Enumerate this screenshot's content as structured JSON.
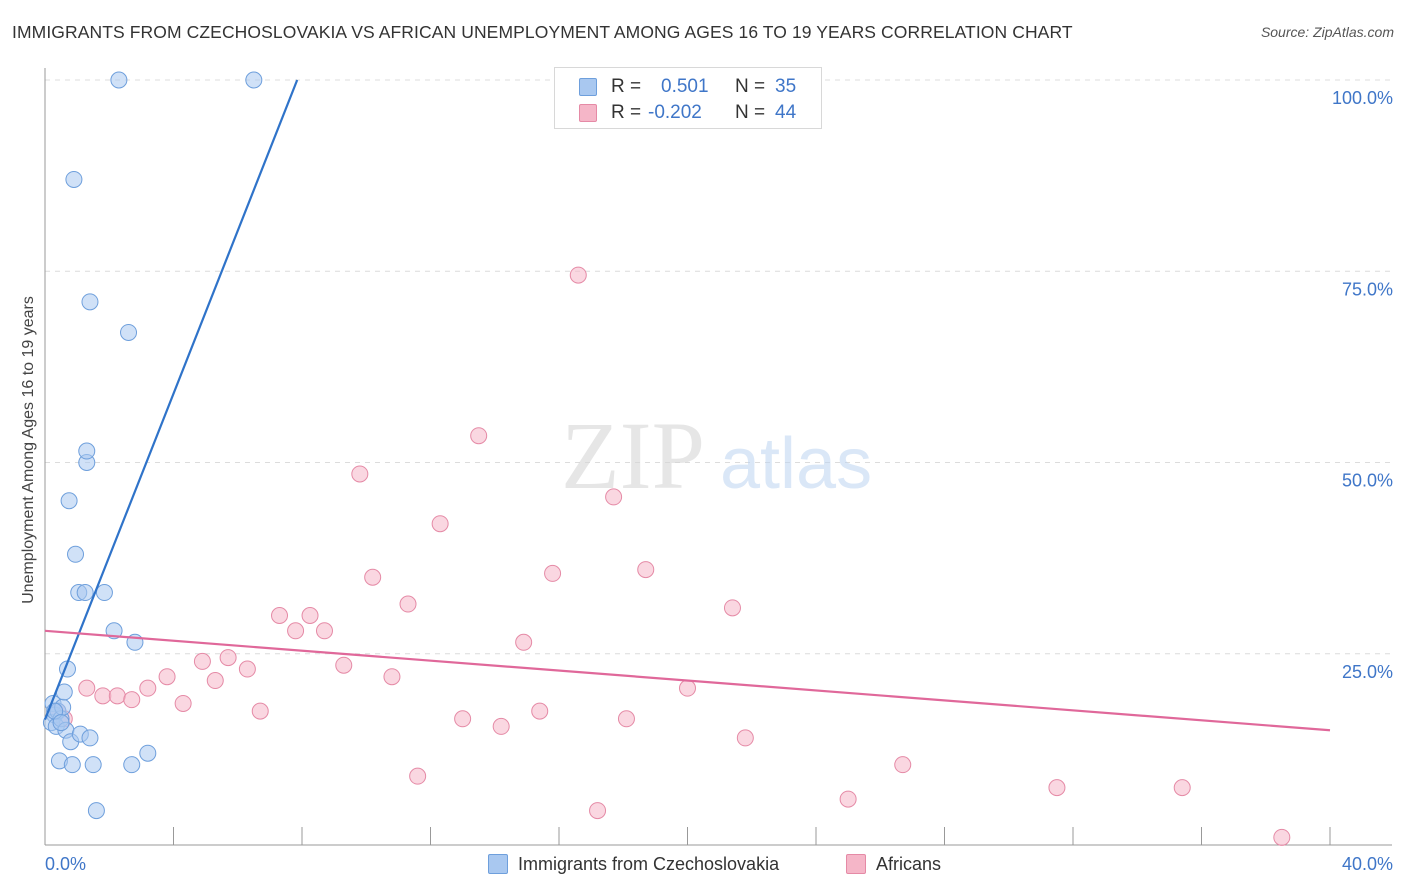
{
  "title": "IMMIGRANTS FROM CZECHOSLOVAKIA VS AFRICAN UNEMPLOYMENT AMONG AGES 16 TO 19 YEARS CORRELATION CHART",
  "source": "Source: ZipAtlas.com",
  "watermark": {
    "zip": "ZIP",
    "atlas": "atlas"
  },
  "stats": [
    {
      "r_label": "R =",
      "r_value": "0.501",
      "n_label": "N =",
      "n_value": "35",
      "color": "#a9c8f0"
    },
    {
      "r_label": "R =",
      "r_value": "-0.202",
      "n_label": "N =",
      "n_value": "44",
      "color": "#f5b6c8"
    }
  ],
  "legend": [
    {
      "label": "Immigrants from Czechoslovakia",
      "color": "#a9c8f0"
    },
    {
      "label": "Africans",
      "color": "#f5b6c8"
    }
  ],
  "colors": {
    "blue_fill": "#a9c8f0",
    "blue_stroke": "#6e9fdc",
    "blue_line": "#2f73c9",
    "pink_fill": "#f5b6c8",
    "pink_stroke": "#e58aa6",
    "pink_line": "#e0689a",
    "tick_text": "#3f76c8"
  },
  "chart_data": {
    "type": "scatter",
    "title": "IMMIGRANTS FROM CZECHOSLOVAKIA VS AFRICAN UNEMPLOYMENT AMONG AGES 16 TO 19 YEARS CORRELATION CHART",
    "xlabel": "",
    "ylabel": "Unemployment Among Ages 16 to 19 years",
    "xlim": [
      0,
      40
    ],
    "ylim": [
      0,
      100
    ],
    "x_tick_labels": [
      "0.0%",
      "40.0%"
    ],
    "y_ticks": [
      25,
      50,
      75,
      100
    ],
    "y_tick_labels": [
      "25.0%",
      "50.0%",
      "75.0%",
      "100.0%"
    ],
    "grid": true,
    "legend_position": "bottom-center",
    "series": [
      {
        "name": "Immigrants from Czechoslovakia",
        "r": 0.501,
        "n": 35,
        "trend": {
          "x": [
            0.0,
            7.85
          ],
          "y": [
            16.4,
            100.0
          ]
        },
        "points": [
          {
            "x": 0.25,
            "y": 18.5
          },
          {
            "x": 0.3,
            "y": 17.0
          },
          {
            "x": 0.2,
            "y": 16.0
          },
          {
            "x": 0.35,
            "y": 15.5
          },
          {
            "x": 0.4,
            "y": 17.5
          },
          {
            "x": 0.5,
            "y": 16.5
          },
          {
            "x": 0.55,
            "y": 18.0
          },
          {
            "x": 0.6,
            "y": 20.0
          },
          {
            "x": 0.65,
            "y": 15.0
          },
          {
            "x": 0.45,
            "y": 11.0
          },
          {
            "x": 0.7,
            "y": 23.0
          },
          {
            "x": 0.8,
            "y": 13.5
          },
          {
            "x": 0.85,
            "y": 10.5
          },
          {
            "x": 0.75,
            "y": 45.0
          },
          {
            "x": 0.95,
            "y": 38.0
          },
          {
            "x": 1.05,
            "y": 33.0
          },
          {
            "x": 1.25,
            "y": 33.0
          },
          {
            "x": 1.1,
            "y": 14.5
          },
          {
            "x": 1.5,
            "y": 10.5
          },
          {
            "x": 1.4,
            "y": 14.0
          },
          {
            "x": 1.3,
            "y": 50.0
          },
          {
            "x": 1.3,
            "y": 51.5
          },
          {
            "x": 0.9,
            "y": 87.0
          },
          {
            "x": 1.4,
            "y": 71.0
          },
          {
            "x": 1.6,
            "y": 4.5
          },
          {
            "x": 1.85,
            "y": 33.0
          },
          {
            "x": 2.15,
            "y": 28.0
          },
          {
            "x": 2.3,
            "y": 100.0
          },
          {
            "x": 2.6,
            "y": 67.0
          },
          {
            "x": 2.7,
            "y": 10.5
          },
          {
            "x": 2.8,
            "y": 26.5
          },
          {
            "x": 3.2,
            "y": 12.0
          },
          {
            "x": 6.5,
            "y": 100.0
          },
          {
            "x": 0.3,
            "y": 17.5
          },
          {
            "x": 0.5,
            "y": 16.0
          }
        ]
      },
      {
        "name": "Africans",
        "r": -0.202,
        "n": 44,
        "trend": {
          "x": [
            0.0,
            40.0
          ],
          "y": [
            28.0,
            15.0
          ]
        },
        "points": [
          {
            "x": 0.6,
            "y": 16.5
          },
          {
            "x": 0.4,
            "y": 17.5
          },
          {
            "x": 1.3,
            "y": 20.5
          },
          {
            "x": 1.8,
            "y": 19.5
          },
          {
            "x": 2.25,
            "y": 19.5
          },
          {
            "x": 2.7,
            "y": 19.0
          },
          {
            "x": 3.2,
            "y": 20.5
          },
          {
            "x": 3.8,
            "y": 22.0
          },
          {
            "x": 4.3,
            "y": 18.5
          },
          {
            "x": 4.9,
            "y": 24.0
          },
          {
            "x": 5.3,
            "y": 21.5
          },
          {
            "x": 5.7,
            "y": 24.5
          },
          {
            "x": 6.3,
            "y": 23.0
          },
          {
            "x": 6.7,
            "y": 17.5
          },
          {
            "x": 7.3,
            "y": 30.0
          },
          {
            "x": 7.8,
            "y": 28.0
          },
          {
            "x": 8.25,
            "y": 30.0
          },
          {
            "x": 8.7,
            "y": 28.0
          },
          {
            "x": 9.3,
            "y": 23.5
          },
          {
            "x": 9.8,
            "y": 48.5
          },
          {
            "x": 10.2,
            "y": 35.0
          },
          {
            "x": 10.8,
            "y": 22.0
          },
          {
            "x": 11.3,
            "y": 31.5
          },
          {
            "x": 11.6,
            "y": 9.0
          },
          {
            "x": 12.3,
            "y": 42.0
          },
          {
            "x": 13.0,
            "y": 16.5
          },
          {
            "x": 13.5,
            "y": 53.5
          },
          {
            "x": 14.2,
            "y": 15.5
          },
          {
            "x": 14.9,
            "y": 26.5
          },
          {
            "x": 15.4,
            "y": 17.5
          },
          {
            "x": 15.8,
            "y": 35.5
          },
          {
            "x": 16.6,
            "y": 74.5
          },
          {
            "x": 17.2,
            "y": 4.5
          },
          {
            "x": 17.7,
            "y": 45.5
          },
          {
            "x": 18.1,
            "y": 16.5
          },
          {
            "x": 18.7,
            "y": 36.0
          },
          {
            "x": 20.0,
            "y": 20.5
          },
          {
            "x": 21.4,
            "y": 31.0
          },
          {
            "x": 21.8,
            "y": 14.0
          },
          {
            "x": 25.0,
            "y": 6.0
          },
          {
            "x": 26.7,
            "y": 10.5
          },
          {
            "x": 31.5,
            "y": 7.5
          },
          {
            "x": 35.4,
            "y": 7.5
          },
          {
            "x": 38.5,
            "y": 1.0
          }
        ]
      }
    ]
  }
}
